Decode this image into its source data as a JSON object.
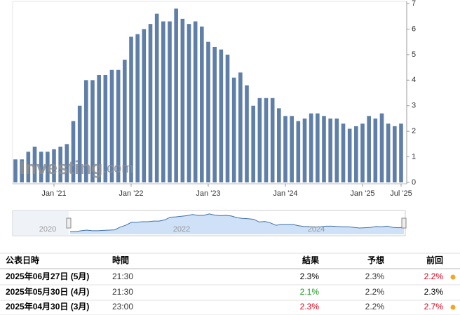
{
  "chart_data": {
    "type": "bar",
    "color": "#5f7fa8",
    "categories": [
      null,
      null,
      null,
      null,
      null,
      null,
      "Jan '21",
      null,
      null,
      null,
      null,
      null,
      null,
      null,
      null,
      null,
      null,
      null,
      "Jan '22",
      null,
      null,
      null,
      null,
      null,
      null,
      null,
      null,
      null,
      null,
      null,
      "Jan '23",
      null,
      null,
      null,
      null,
      null,
      null,
      null,
      null,
      null,
      null,
      null,
      "Jan '24",
      null,
      null,
      null,
      null,
      null,
      null,
      null,
      null,
      null,
      null,
      null,
      "Jan '25",
      null,
      null,
      null,
      null,
      null,
      "Jul '25"
    ],
    "values": [
      0.9,
      0.9,
      1.2,
      1.4,
      1.2,
      1.2,
      1.3,
      1.4,
      1.5,
      2.4,
      3.0,
      4.0,
      4.0,
      4.2,
      4.2,
      4.4,
      4.4,
      4.8,
      5.7,
      5.8,
      6.0,
      6.2,
      6.6,
      6.3,
      6.3,
      6.8,
      6.4,
      6.2,
      6.3,
      6.1,
      5.5,
      5.3,
      5.2,
      5.0,
      4.1,
      4.3,
      3.8,
      3.0,
      3.3,
      3.3,
      3.3,
      2.9,
      2.6,
      2.6,
      2.4,
      2.5,
      2.7,
      2.7,
      2.6,
      2.5,
      2.5,
      2.3,
      2.1,
      2.2,
      2.3,
      2.6,
      2.5,
      2.7,
      2.3,
      2.2,
      2.3
    ],
    "ylim": [
      0,
      7
    ],
    "yticks": [
      0,
      1,
      2,
      3,
      4,
      5,
      6,
      7
    ],
    "watermark": [
      "Investing",
      ".com"
    ],
    "navigator_labels": [
      "2020",
      "2022",
      "2024"
    ]
  },
  "table": {
    "header": [
      "公表日時",
      "時間",
      "結果",
      "予想",
      "前回"
    ],
    "rows": [
      {
        "cells": [
          "2025年06月27日 (5月)",
          "21:30",
          "2.3%",
          "2.3%",
          "2.2%"
        ],
        "colors": [
          "#000",
          "#333",
          "#000",
          "#333",
          "#e0001a"
        ],
        "dot": true
      },
      {
        "cells": [
          "2025年05月30日 (4月)",
          "21:30",
          "2.1%",
          "2.2%",
          "2.3%"
        ],
        "colors": [
          "#000",
          "#333",
          "#1a9a1a",
          "#333",
          "#000"
        ],
        "dot": false
      },
      {
        "cells": [
          "2025年04月30日 (3月)",
          "23:00",
          "2.3%",
          "2.2%",
          "2.7%"
        ],
        "colors": [
          "#000",
          "#333",
          "#e0001a",
          "#333",
          "#e0001a"
        ],
        "dot": true
      }
    ]
  }
}
